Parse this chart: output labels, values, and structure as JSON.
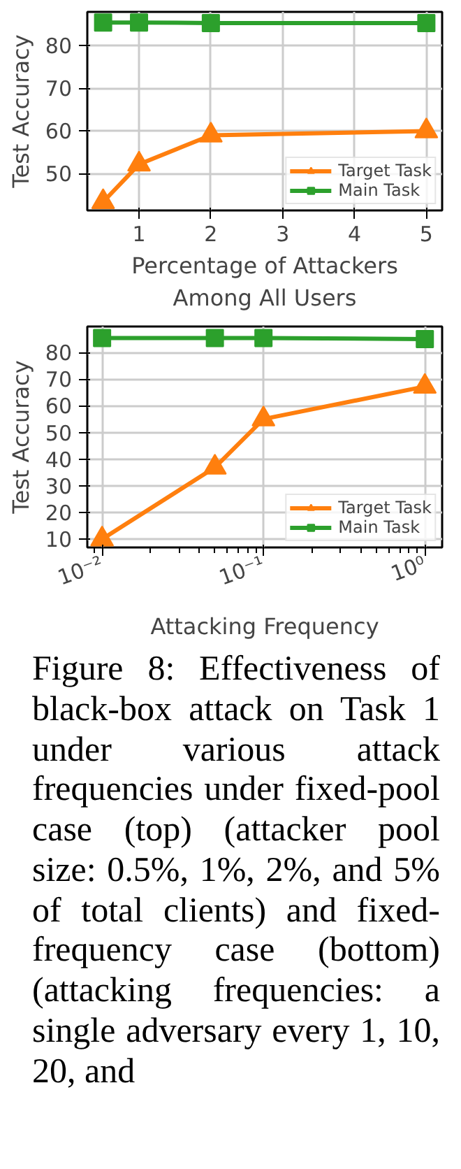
{
  "chart_data": [
    {
      "type": "line",
      "xlabel": "Percentage of Attackers\nAmong All Users",
      "ylabel": "Test Accuracy",
      "x": [
        0.5,
        1,
        2,
        5
      ],
      "xlim": [
        0.28,
        5.22
      ],
      "ylim": [
        41.4,
        87.9
      ],
      "xticks": [
        1,
        2,
        3,
        4,
        5
      ],
      "yticks": [
        50,
        60,
        70,
        80
      ],
      "grid": true,
      "legend": "bottom right",
      "series": [
        {
          "name": "Target Task",
          "color": "#ff7f0e",
          "marker": "triangle",
          "values": [
            43.4,
            52.2,
            59.0,
            60.0
          ]
        },
        {
          "name": "Main Task",
          "color": "#2ca02c",
          "marker": "square",
          "values": [
            85.4,
            85.4,
            85.3,
            85.3
          ]
        }
      ]
    },
    {
      "type": "line",
      "xlabel": "Attacking Frequency",
      "ylabel": "Test Accuracy",
      "x": [
        0.01,
        0.05,
        0.1,
        1
      ],
      "log": "x",
      "xlim": [
        0.0081,
        1.28
      ],
      "ylim": [
        6.9,
        89.7
      ],
      "xticks": [
        {
          "value": 0.01,
          "label": "10⁻²"
        },
        {
          "value": 0.1,
          "label": "10⁻¹"
        },
        {
          "value": 1,
          "label": "10⁰"
        }
      ],
      "yticks": [
        10,
        20,
        30,
        40,
        50,
        60,
        70,
        80
      ],
      "grid": true,
      "legend": "bottom right",
      "series": [
        {
          "name": "Target Task",
          "color": "#ff7f0e",
          "marker": "triangle",
          "values": [
            10.0,
            36.9,
            55.0,
            67.2
          ]
        },
        {
          "name": "Main Task",
          "color": "#2ca02c",
          "marker": "square",
          "values": [
            85.4,
            85.4,
            85.4,
            85.0
          ]
        }
      ],
      "annotations": [
        "Figure 8: Effectiveness of black-box attack on Task 1 under various attack frequencies under fixed-pool case (top) (attacker pool size: 0.5%, 1%, 2%, and 5% of total clients) and fixed-frequency case (bottom) (attacking frequencies: a single adversary every 1, 10, 20, and"
      ]
    }
  ]
}
